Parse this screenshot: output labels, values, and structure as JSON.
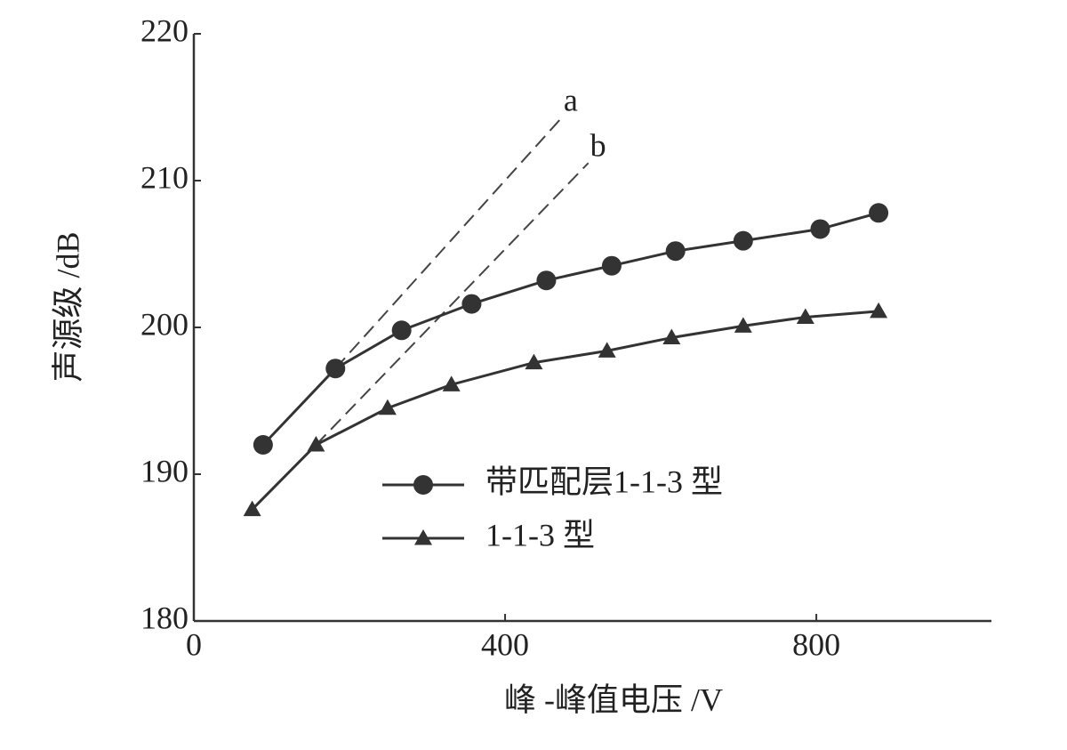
{
  "chart_data": {
    "type": "line",
    "xlabel": "峰 -峰值电压 /V",
    "ylabel": "声源级 /dB",
    "xlim": [
      0,
      1025
    ],
    "xticks": [
      0,
      400,
      800
    ],
    "ylim": [
      180,
      220
    ],
    "yticks": [
      180,
      190,
      200,
      210,
      220
    ],
    "series": [
      {
        "name": "带匹配层1-1-3 型",
        "color": "#333333",
        "marker": "circle",
        "x": [
          89,
          182,
          267,
          357,
          453,
          537,
          619,
          706,
          805,
          880
        ],
        "values": [
          192.0,
          197.2,
          199.8,
          201.6,
          203.2,
          204.2,
          205.2,
          205.9,
          206.7,
          207.8
        ]
      },
      {
        "name": "1-1-3 型",
        "color": "#333333",
        "marker": "triangle",
        "x": [
          75,
          157,
          249,
          331,
          437,
          531,
          614,
          706,
          786,
          880
        ],
        "values": [
          187.6,
          192.0,
          194.5,
          196.1,
          197.6,
          198.4,
          199.3,
          200.1,
          200.7,
          201.1
        ]
      }
    ],
    "annotations": [
      {
        "label": "a",
        "x": [
          182,
          473
        ],
        "values": [
          197.2,
          214.3
        ]
      },
      {
        "label": "b",
        "x": [
          157,
          507
        ],
        "values": [
          192.0,
          211.2
        ]
      }
    ]
  }
}
